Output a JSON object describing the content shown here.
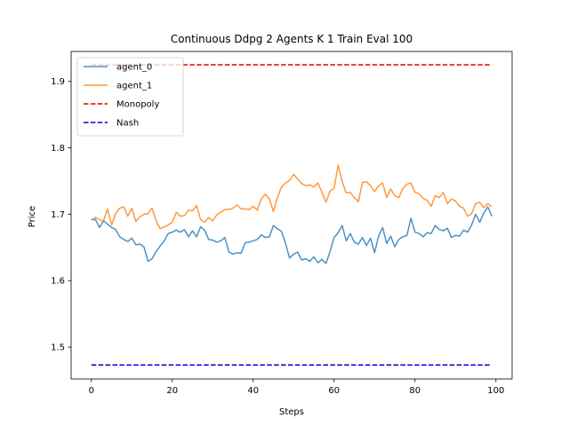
{
  "chart_data": {
    "type": "line",
    "title": "Continuous Ddpg 2 Agents K 1 Train Eval 100",
    "xlabel": "Steps",
    "ylabel": "Price",
    "xlim": [
      -5,
      104
    ],
    "ylim": [
      1.452,
      1.945
    ],
    "xticks": [
      0,
      20,
      40,
      60,
      80,
      100
    ],
    "yticks": [
      1.5,
      1.6,
      1.7,
      1.8,
      1.9
    ],
    "grid": false,
    "legend_position": "upper-left",
    "series": [
      {
        "name": "agent_0",
        "color": "#1f77b4",
        "style": "solid",
        "x": [
          0,
          1,
          2,
          3,
          4,
          5,
          6,
          7,
          8,
          9,
          10,
          11,
          12,
          13,
          14,
          15,
          16,
          17,
          18,
          19,
          20,
          21,
          22,
          23,
          24,
          25,
          26,
          27,
          28,
          29,
          30,
          31,
          32,
          33,
          34,
          35,
          36,
          37,
          38,
          39,
          40,
          41,
          42,
          43,
          44,
          45,
          46,
          47,
          48,
          49,
          50,
          51,
          52,
          53,
          54,
          55,
          56,
          57,
          58,
          59,
          60,
          61,
          62,
          63,
          64,
          65,
          66,
          67,
          68,
          69,
          70,
          71,
          72,
          73,
          74,
          75,
          76,
          77,
          78,
          79,
          80,
          81,
          82,
          83,
          84,
          85,
          86,
          87,
          88,
          89,
          90,
          91,
          92,
          93,
          94,
          95,
          96,
          97,
          98,
          99
        ],
        "values": [
          1.692,
          1.692,
          1.68,
          1.69,
          1.685,
          1.68,
          1.677,
          1.666,
          1.662,
          1.659,
          1.664,
          1.654,
          1.655,
          1.651,
          1.629,
          1.633,
          1.644,
          1.652,
          1.66,
          1.671,
          1.673,
          1.676,
          1.673,
          1.677,
          1.666,
          1.675,
          1.666,
          1.681,
          1.676,
          1.662,
          1.661,
          1.658,
          1.66,
          1.665,
          1.643,
          1.64,
          1.642,
          1.641,
          1.657,
          1.658,
          1.66,
          1.662,
          1.669,
          1.665,
          1.666,
          1.683,
          1.678,
          1.674,
          1.656,
          1.634,
          1.64,
          1.643,
          1.631,
          1.633,
          1.629,
          1.636,
          1.627,
          1.632,
          1.626,
          1.644,
          1.665,
          1.672,
          1.683,
          1.66,
          1.671,
          1.658,
          1.655,
          1.665,
          1.653,
          1.664,
          1.642,
          1.667,
          1.68,
          1.656,
          1.667,
          1.651,
          1.662,
          1.666,
          1.668,
          1.694,
          1.673,
          1.671,
          1.666,
          1.672,
          1.671,
          1.683,
          1.677,
          1.675,
          1.679,
          1.665,
          1.668,
          1.667,
          1.676,
          1.673,
          1.684,
          1.7,
          1.688,
          1.702,
          1.711,
          1.697
        ]
      },
      {
        "name": "agent_1",
        "color": "#ff7f0e",
        "style": "solid",
        "x": [
          0,
          1,
          2,
          3,
          4,
          5,
          6,
          7,
          8,
          9,
          10,
          11,
          12,
          13,
          14,
          15,
          16,
          17,
          18,
          19,
          20,
          21,
          22,
          23,
          24,
          25,
          26,
          27,
          28,
          29,
          30,
          31,
          32,
          33,
          34,
          35,
          36,
          37,
          38,
          39,
          40,
          41,
          42,
          43,
          44,
          45,
          46,
          47,
          48,
          49,
          50,
          51,
          52,
          53,
          54,
          55,
          56,
          57,
          58,
          59,
          60,
          61,
          62,
          63,
          64,
          65,
          66,
          67,
          68,
          69,
          70,
          71,
          72,
          73,
          74,
          75,
          76,
          77,
          78,
          79,
          80,
          81,
          82,
          83,
          84,
          85,
          86,
          87,
          88,
          89,
          90,
          91,
          92,
          93,
          94,
          95,
          96,
          97,
          98,
          99
        ],
        "values": [
          1.691,
          1.695,
          1.692,
          1.69,
          1.708,
          1.684,
          1.701,
          1.709,
          1.711,
          1.697,
          1.709,
          1.689,
          1.696,
          1.7,
          1.701,
          1.709,
          1.69,
          1.678,
          1.681,
          1.684,
          1.688,
          1.703,
          1.697,
          1.698,
          1.706,
          1.705,
          1.713,
          1.692,
          1.688,
          1.695,
          1.69,
          1.699,
          1.703,
          1.707,
          1.707,
          1.709,
          1.714,
          1.708,
          1.708,
          1.707,
          1.712,
          1.706,
          1.723,
          1.73,
          1.723,
          1.704,
          1.725,
          1.741,
          1.747,
          1.751,
          1.76,
          1.753,
          1.746,
          1.743,
          1.744,
          1.741,
          1.747,
          1.733,
          1.718,
          1.735,
          1.739,
          1.774,
          1.749,
          1.732,
          1.733,
          1.725,
          1.719,
          1.748,
          1.749,
          1.743,
          1.734,
          1.743,
          1.747,
          1.725,
          1.738,
          1.728,
          1.725,
          1.739,
          1.745,
          1.747,
          1.733,
          1.731,
          1.724,
          1.721,
          1.712,
          1.728,
          1.725,
          1.733,
          1.716,
          1.723,
          1.72,
          1.712,
          1.709,
          1.697,
          1.701,
          1.716,
          1.718,
          1.71,
          1.716,
          1.711
        ]
      },
      {
        "name": "Monopoly",
        "color": "#dd0000",
        "style": "dashed",
        "x": [
          0,
          99
        ],
        "values": [
          1.925,
          1.925
        ]
      },
      {
        "name": "Nash",
        "color": "#0000cc",
        "style": "dashed",
        "x": [
          0,
          99
        ],
        "values": [
          1.473,
          1.473
        ]
      }
    ]
  }
}
